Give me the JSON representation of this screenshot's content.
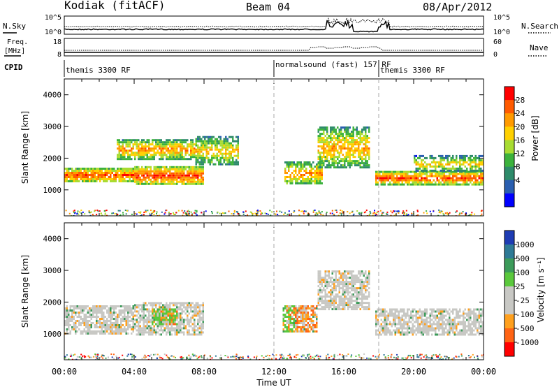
{
  "header": {
    "station": "Kodiak (fitACF)",
    "beam": "Beam 04",
    "date": "08/Apr/2012"
  },
  "labels": {
    "nsky": "N.Sky",
    "nsearch": "N.Search",
    "freq_line1": "Freq.",
    "freq_line2": "[MHz]",
    "nave": "Nave",
    "cpid": "CPID",
    "time_axis": "Time UT"
  },
  "noise_panel": {
    "left_ticks": [
      "10^5",
      "10^0"
    ],
    "right_ticks": [
      "10^5",
      "10^0"
    ]
  },
  "freq_panel": {
    "left_ticks": [
      "18",
      "8"
    ],
    "right_ticks": [
      "60",
      "0"
    ]
  },
  "cpid_segments": [
    {
      "label": "themis 3300 RF",
      "start_hour": 0
    },
    {
      "label": "normalsound (fast) 157 RF",
      "start_hour": 12
    },
    {
      "label": "themis 3300 RF",
      "start_hour": 18
    }
  ],
  "chart_data": [
    {
      "type": "heatmap",
      "name": "power",
      "x_range": [
        0,
        24
      ],
      "y_range": [
        180,
        4500
      ],
      "ylabel": "Slant Range [km]",
      "ytick_values": [
        1000,
        2000,
        3000,
        4000
      ],
      "ytick_labels": [
        "1000",
        "2000",
        "3000",
        "4000"
      ],
      "colorbar": {
        "label": "Power [dB]",
        "tick_labels": [
          "28",
          "24",
          "20",
          "16",
          "12",
          "8",
          "4"
        ],
        "colors": [
          "#ff0000",
          "#ff5a00",
          "#ff9a00",
          "#ffd000",
          "#a8dc32",
          "#3cb23c",
          "#2e8b6a",
          "#2a5fb0",
          "#0000ff"
        ]
      },
      "bands": [
        {
          "t": [
            0,
            4
          ],
          "r": [
            1280,
            1700
          ],
          "c": 0.85
        },
        {
          "t": [
            4,
            8
          ],
          "r": [
            1200,
            1750
          ],
          "c": 0.9
        },
        {
          "t": [
            3,
            7.5
          ],
          "r": [
            2000,
            2600
          ],
          "c": 0.6
        },
        {
          "t": [
            7.5,
            10
          ],
          "r": [
            1800,
            2700
          ],
          "c": 0.4
        },
        {
          "t": [
            12.6,
            14.8
          ],
          "r": [
            1200,
            1900
          ],
          "c": 0.6
        },
        {
          "t": [
            14.5,
            17.5
          ],
          "r": [
            1700,
            3000
          ],
          "c": 0.5
        },
        {
          "t": [
            17.8,
            24
          ],
          "r": [
            1200,
            1600
          ],
          "c": 0.85
        },
        {
          "t": [
            20,
            24
          ],
          "r": [
            1600,
            2100
          ],
          "c": 0.35
        }
      ]
    },
    {
      "type": "heatmap",
      "name": "velocity",
      "x_range": [
        0,
        24
      ],
      "y_range": [
        180,
        4500
      ],
      "ylabel": "Slant Range [km]",
      "ytick_values": [
        1000,
        2000,
        3000,
        4000
      ],
      "ytick_labels": [
        "1000",
        "2000",
        "3000",
        "4000"
      ],
      "colorbar": {
        "label": "Velocity [m s⁻¹]",
        "tick_labels": [
          "1000",
          "500",
          "100",
          "25",
          "-25",
          "-100",
          "-500",
          "-1000"
        ],
        "colors": [
          "#1e3cb4",
          "#2e7a96",
          "#3c9b5a",
          "#5ac83c",
          "#c8c8c4",
          "#c8c8c4",
          "#ffa01e",
          "#ff6414",
          "#ff0000"
        ]
      },
      "bands": [
        {
          "t": [
            0,
            4
          ],
          "r": [
            1000,
            1900
          ],
          "c": 0.5
        },
        {
          "t": [
            4,
            8
          ],
          "r": [
            1000,
            2000
          ],
          "c": 0.5
        },
        {
          "t": [
            5,
            6.5
          ],
          "r": [
            1300,
            1800
          ],
          "c": 0.8
        },
        {
          "t": [
            12.5,
            14.5
          ],
          "r": [
            1100,
            1900
          ],
          "c": 0.75
        },
        {
          "t": [
            14.5,
            17.5
          ],
          "r": [
            1800,
            3000
          ],
          "c": 0.45
        },
        {
          "t": [
            17.8,
            24
          ],
          "r": [
            1000,
            1800
          ],
          "c": 0.5
        }
      ]
    }
  ],
  "xticks": [
    "00:00",
    "04:00",
    "08:00",
    "12:00",
    "16:00",
    "20:00",
    "00:00"
  ]
}
